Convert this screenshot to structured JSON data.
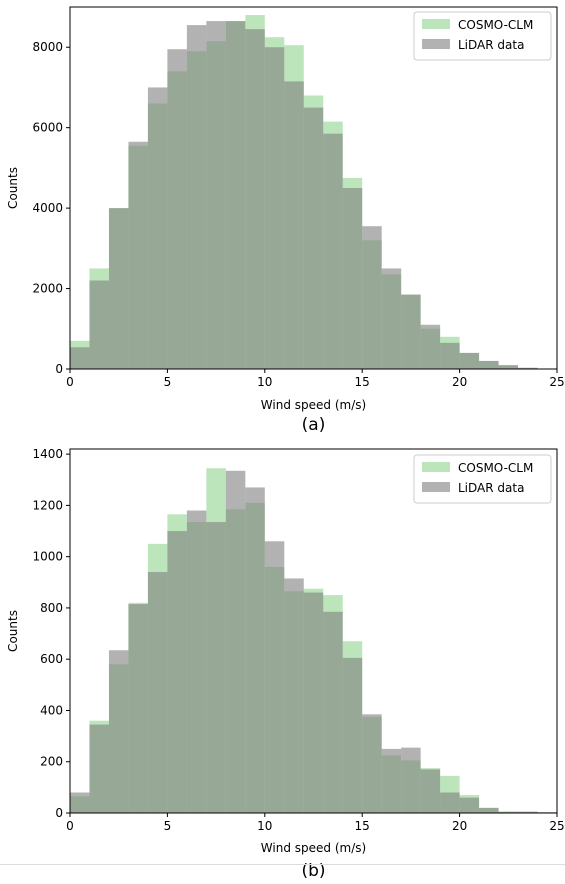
{
  "chart_data": [
    {
      "type": "histogram",
      "caption": "(a)",
      "xlabel": "Wind speed (m/s)",
      "ylabel": "Counts",
      "xlim": [
        0,
        25
      ],
      "ylim": [
        0,
        9000
      ],
      "xticks": [
        0,
        5,
        10,
        15,
        20,
        25
      ],
      "yticks": [
        0,
        2000,
        4000,
        6000,
        8000
      ],
      "bin_edges": [
        0,
        1,
        2,
        3,
        4,
        5,
        6,
        7,
        8,
        9,
        10,
        11,
        12,
        13,
        14,
        15,
        16,
        17,
        18,
        19,
        20,
        21,
        22,
        23,
        24,
        25
      ],
      "legend_position": "top-right",
      "grid": false,
      "series": [
        {
          "name": "COSMO-CLM",
          "color": "#90d490",
          "values": [
            700,
            2500,
            4000,
            5550,
            6600,
            7400,
            7900,
            8150,
            8650,
            8800,
            8250,
            8050,
            6800,
            6150,
            4750,
            3200,
            2350,
            1850,
            1000,
            800,
            400,
            200,
            80,
            30,
            10
          ]
        },
        {
          "name": "LiDAR data",
          "color": "#7f7f7f",
          "values": [
            540,
            2200,
            4000,
            5650,
            7000,
            7950,
            8550,
            8650,
            8650,
            8450,
            8000,
            7150,
            6500,
            5850,
            4500,
            3550,
            2500,
            1850,
            1100,
            650,
            400,
            200,
            100,
            30,
            10
          ]
        }
      ]
    },
    {
      "type": "histogram",
      "caption": "(b)",
      "xlabel": "Wind speed (m/s)",
      "ylabel": "Counts",
      "xlim": [
        0,
        25
      ],
      "ylim": [
        0,
        1420
      ],
      "xticks": [
        0,
        5,
        10,
        15,
        20,
        25
      ],
      "yticks": [
        0,
        200,
        400,
        600,
        800,
        1000,
        1200,
        1400
      ],
      "bin_edges": [
        0,
        1,
        2,
        3,
        4,
        5,
        6,
        7,
        8,
        9,
        10,
        11,
        12,
        13,
        14,
        15,
        16,
        17,
        18,
        19,
        20,
        21,
        22,
        23,
        24,
        25
      ],
      "legend_position": "top-right",
      "grid": false,
      "series": [
        {
          "name": "COSMO-CLM",
          "color": "#90d490",
          "values": [
            65,
            360,
            580,
            820,
            1050,
            1165,
            1135,
            1345,
            1185,
            1210,
            960,
            865,
            875,
            850,
            670,
            375,
            225,
            205,
            175,
            145,
            70,
            20,
            5,
            5,
            2
          ]
        },
        {
          "name": "LiDAR data",
          "color": "#7f7f7f",
          "values": [
            80,
            345,
            635,
            815,
            940,
            1100,
            1180,
            1135,
            1335,
            1270,
            1060,
            915,
            860,
            785,
            605,
            385,
            250,
            255,
            170,
            80,
            60,
            20,
            5,
            5,
            3
          ]
        }
      ]
    }
  ]
}
